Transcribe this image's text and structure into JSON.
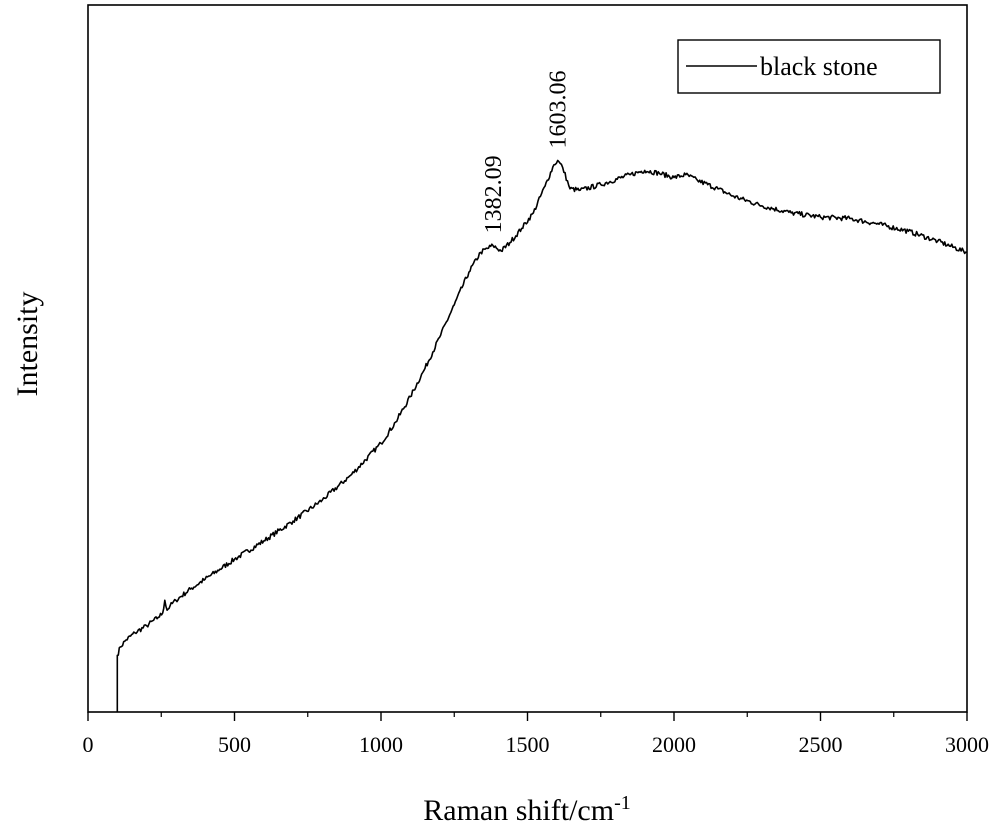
{
  "chart_data": {
    "type": "line",
    "xlabel": "Raman shift/cm",
    "xlabel_sup": "-1",
    "ylabel": "Intensity",
    "xlim": [
      0,
      3000
    ],
    "ylim": [
      0,
      100
    ],
    "xticks": [
      "0",
      "500",
      "1000",
      "1500",
      "2000",
      "2500",
      "3000"
    ],
    "grid": false,
    "legend_position": "top-right",
    "series": [
      {
        "name": "black stone",
        "color": "#000000",
        "points": [
          [
            100,
            0
          ],
          [
            100,
            8
          ],
          [
            110,
            9.2
          ],
          [
            130,
            10.2
          ],
          [
            160,
            11.2
          ],
          [
            200,
            12.2
          ],
          [
            240,
            13.4
          ],
          [
            255,
            14.0
          ],
          [
            262,
            15.8
          ],
          [
            270,
            14.4
          ],
          [
            280,
            15.0
          ],
          [
            300,
            15.8
          ],
          [
            350,
            17.4
          ],
          [
            400,
            18.8
          ],
          [
            450,
            20.2
          ],
          [
            500,
            21.6
          ],
          [
            600,
            24.2
          ],
          [
            700,
            27.0
          ],
          [
            800,
            30.0
          ],
          [
            900,
            33.6
          ],
          [
            1000,
            38.0
          ],
          [
            1050,
            41.0
          ],
          [
            1100,
            44.6
          ],
          [
            1150,
            48.6
          ],
          [
            1200,
            53.0
          ],
          [
            1250,
            57.6
          ],
          [
            1300,
            62.2
          ],
          [
            1340,
            65.0
          ],
          [
            1382,
            66.0
          ],
          [
            1410,
            65.2
          ],
          [
            1440,
            66.4
          ],
          [
            1480,
            68.4
          ],
          [
            1520,
            70.6
          ],
          [
            1560,
            74.4
          ],
          [
            1590,
            77.4
          ],
          [
            1603,
            78.0
          ],
          [
            1620,
            77.0
          ],
          [
            1645,
            74.0
          ],
          [
            1680,
            73.8
          ],
          [
            1750,
            74.6
          ],
          [
            1850,
            76.0
          ],
          [
            1900,
            76.6
          ],
          [
            1950,
            76.2
          ],
          [
            2000,
            75.6
          ],
          [
            2040,
            76.0
          ],
          [
            2080,
            75.2
          ],
          [
            2150,
            74.0
          ],
          [
            2200,
            73.0
          ],
          [
            2300,
            71.6
          ],
          [
            2400,
            70.6
          ],
          [
            2500,
            70.0
          ],
          [
            2600,
            69.8
          ],
          [
            2700,
            69.0
          ],
          [
            2800,
            68.0
          ],
          [
            2900,
            66.6
          ],
          [
            3000,
            65.0
          ]
        ]
      }
    ],
    "annotations": [
      {
        "text": "1382.09",
        "x": 1382,
        "y": 66.0
      },
      {
        "text": "1603.06",
        "x": 1603,
        "y": 78.0
      }
    ]
  }
}
